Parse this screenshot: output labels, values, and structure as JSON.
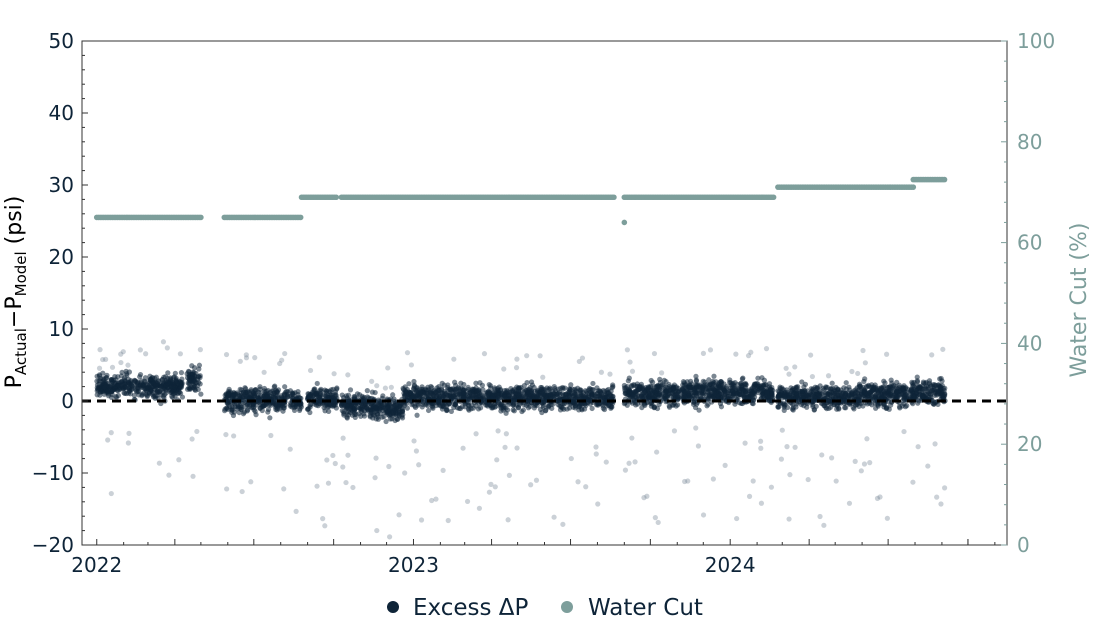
{
  "chart_data": {
    "type": "scatter",
    "title": "",
    "ylabel_left": {
      "base": "P",
      "sub1": "Actual",
      "mid": "−P",
      "sub2": "Model",
      "unit": " (psi)"
    },
    "ylabel_right": "Water Cut (%)",
    "ylim_left": [
      -20,
      50
    ],
    "ylim_right": [
      0,
      100
    ],
    "xlim": [
      "2021-12-15",
      "2024-11-15"
    ],
    "left_ticks": [
      "−20",
      "−10",
      "0",
      "10",
      "20",
      "30",
      "40",
      "50"
    ],
    "right_ticks": [
      "0",
      "20",
      "40",
      "60",
      "80",
      "100"
    ],
    "x_ticks": [
      "2022",
      "2023",
      "2024"
    ],
    "reference_line": {
      "y": 0,
      "style": "dashed",
      "color": "#000000"
    },
    "grid": false,
    "legend_position": "bottom-center",
    "colors": {
      "excess": "#0e2438",
      "water_cut": "#7d9e9b"
    },
    "series": [
      {
        "name": "Excess ΔP",
        "axis": "left",
        "segments": [
          {
            "start": "2022-01-01",
            "end": "2022-04-10",
            "mean": 2.0
          },
          {
            "start": "2022-04-15",
            "end": "2022-05-01",
            "mean": 2.8
          },
          {
            "start": "2022-05-28",
            "end": "2022-08-25",
            "mean": 0.2
          },
          {
            "start": "2022-09-01",
            "end": "2022-10-05",
            "mean": 0.3
          },
          {
            "start": "2022-10-10",
            "end": "2022-11-15",
            "mean": -0.5
          },
          {
            "start": "2022-11-15",
            "end": "2022-12-20",
            "mean": -1.0
          },
          {
            "start": "2022-12-20",
            "end": "2023-04-01",
            "mean": 0.6
          },
          {
            "start": "2023-04-01",
            "end": "2023-08-20",
            "mean": 0.5
          },
          {
            "start": "2023-09-01",
            "end": "2023-11-10",
            "mean": 1.0
          },
          {
            "start": "2023-11-10",
            "end": "2024-02-20",
            "mean": 1.3
          },
          {
            "start": "2024-02-25",
            "end": "2024-05-30",
            "mean": 0.6
          },
          {
            "start": "2024-05-30",
            "end": "2024-07-30",
            "mean": 0.9
          },
          {
            "start": "2024-07-30",
            "end": "2024-09-05",
            "mean": 1.2
          }
        ]
      },
      {
        "name": "Water Cut",
        "axis": "right",
        "steps": [
          {
            "start": "2022-01-01",
            "end": "2022-05-01",
            "value": 65
          },
          {
            "start": "2022-05-28",
            "end": "2022-08-25",
            "value": 65
          },
          {
            "start": "2022-08-25",
            "end": "2022-10-05",
            "value": 69
          },
          {
            "start": "2022-10-10",
            "end": "2023-08-20",
            "value": 69
          },
          {
            "start": "2023-09-01",
            "end": "2024-02-20",
            "value": 69
          },
          {
            "start": "2024-02-25",
            "end": "2024-07-30",
            "value": 71
          },
          {
            "start": "2024-07-30",
            "end": "2024-09-05",
            "value": 72.5
          }
        ],
        "outliers": [
          {
            "date": "2023-09-01",
            "value": 64
          }
        ]
      }
    ]
  },
  "legend": {
    "items": [
      {
        "label": "Excess ΔP"
      },
      {
        "label": "Water Cut"
      }
    ]
  }
}
